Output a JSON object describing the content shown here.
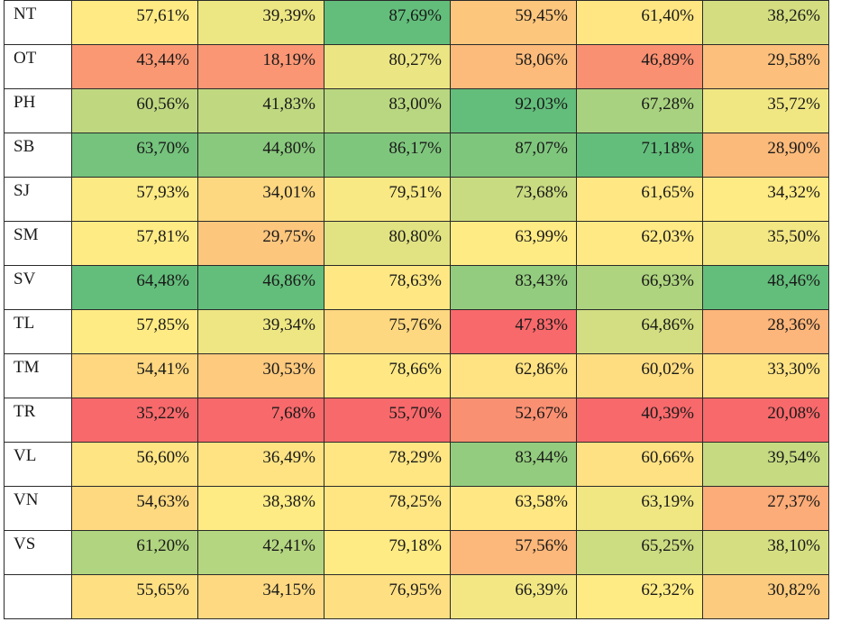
{
  "chart_data": {
    "type": "table",
    "columns": 6,
    "rows": [
      {
        "label": "NT",
        "values": [
          "57,61%",
          "39,39%",
          "87,69%",
          "59,45%",
          "61,40%",
          "38,26%"
        ]
      },
      {
        "label": "OT",
        "values": [
          "43,44%",
          "18,19%",
          "80,27%",
          "58,06%",
          "46,89%",
          "29,58%"
        ]
      },
      {
        "label": "PH",
        "values": [
          "60,56%",
          "41,83%",
          "83,00%",
          "92,03%",
          "67,28%",
          "35,72%"
        ]
      },
      {
        "label": "SB",
        "values": [
          "63,70%",
          "44,80%",
          "86,17%",
          "87,07%",
          "71,18%",
          "28,90%"
        ]
      },
      {
        "label": "SJ",
        "values": [
          "57,93%",
          "34,01%",
          "79,51%",
          "73,68%",
          "61,65%",
          "34,32%"
        ]
      },
      {
        "label": "SM",
        "values": [
          "57,81%",
          "29,75%",
          "80,80%",
          "63,99%",
          "62,03%",
          "35,50%"
        ]
      },
      {
        "label": "SV",
        "values": [
          "64,48%",
          "46,86%",
          "78,63%",
          "83,43%",
          "66,93%",
          "48,46%"
        ]
      },
      {
        "label": "TL",
        "values": [
          "57,85%",
          "39,34%",
          "75,76%",
          "47,83%",
          "64,86%",
          "28,36%"
        ]
      },
      {
        "label": "TM",
        "values": [
          "54,41%",
          "30,53%",
          "78,66%",
          "62,86%",
          "60,02%",
          "33,30%"
        ]
      },
      {
        "label": "TR",
        "values": [
          "35,22%",
          "7,68%",
          "55,70%",
          "52,67%",
          "40,39%",
          "20,08%"
        ]
      },
      {
        "label": "VL",
        "values": [
          "56,60%",
          "36,49%",
          "78,29%",
          "83,44%",
          "60,66%",
          "39,54%"
        ]
      },
      {
        "label": "VN",
        "values": [
          "54,63%",
          "38,38%",
          "78,25%",
          "63,58%",
          "63,19%",
          "27,37%"
        ]
      },
      {
        "label": "VS",
        "values": [
          "61,20%",
          "42,41%",
          "79,18%",
          "57,56%",
          "65,25%",
          "38,10%"
        ]
      },
      {
        "label": "",
        "values": [
          "55,65%",
          "34,15%",
          "76,95%",
          "66,39%",
          "62,32%",
          "30,82%"
        ]
      }
    ],
    "color_scale": {
      "low": "#f8696b",
      "mid": "#ffeb84",
      "high": "#63be7b"
    }
  }
}
